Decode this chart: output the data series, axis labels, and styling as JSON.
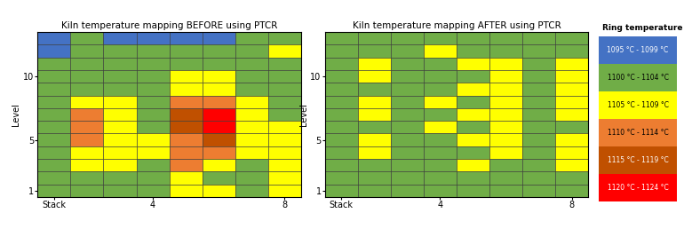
{
  "title_before": "Kiln temperature mapping BEFORE using PTCR",
  "title_after": "Kiln temperature mapping AFTER using PTCR",
  "legend_title": "Ring temperature",
  "legend_entries": [
    "1095 °C - 1099 °C",
    "1100 °C - 1104 °C",
    "1105 °C - 1109 °C",
    "1110 °C - 1114 °C",
    "1115 °C - 1119 °C",
    "1120 °C - 1124 °C"
  ],
  "color_list": [
    "#4472C4",
    "#70AD47",
    "#FFFF00",
    "#ED7D31",
    "#C05000",
    "#FF0000"
  ],
  "n_stacks": 8,
  "n_levels": 13,
  "before_grid": [
    [
      0,
      1,
      0,
      0,
      0,
      0,
      1,
      1
    ],
    [
      0,
      1,
      1,
      1,
      1,
      1,
      1,
      2
    ],
    [
      1,
      1,
      1,
      1,
      1,
      1,
      1,
      1
    ],
    [
      1,
      1,
      1,
      1,
      2,
      2,
      1,
      1
    ],
    [
      1,
      1,
      1,
      1,
      2,
      2,
      1,
      1
    ],
    [
      1,
      2,
      2,
      1,
      3,
      3,
      2,
      1
    ],
    [
      1,
      3,
      2,
      1,
      4,
      5,
      2,
      1
    ],
    [
      1,
      3,
      2,
      1,
      4,
      5,
      2,
      2
    ],
    [
      1,
      3,
      2,
      2,
      3,
      4,
      2,
      2
    ],
    [
      1,
      2,
      2,
      2,
      3,
      3,
      2,
      2
    ],
    [
      1,
      2,
      2,
      1,
      3,
      2,
      1,
      2
    ],
    [
      1,
      1,
      1,
      1,
      2,
      1,
      1,
      2
    ],
    [
      1,
      1,
      1,
      1,
      2,
      2,
      1,
      2
    ]
  ],
  "after_grid": [
    [
      1,
      1,
      1,
      1,
      1,
      1,
      1,
      1
    ],
    [
      1,
      1,
      1,
      2,
      1,
      1,
      1,
      1
    ],
    [
      1,
      2,
      1,
      1,
      2,
      2,
      1,
      2
    ],
    [
      1,
      2,
      1,
      1,
      1,
      2,
      1,
      2
    ],
    [
      1,
      1,
      1,
      1,
      2,
      2,
      1,
      2
    ],
    [
      1,
      2,
      1,
      2,
      1,
      2,
      1,
      2
    ],
    [
      1,
      2,
      1,
      1,
      2,
      2,
      1,
      2
    ],
    [
      1,
      1,
      1,
      2,
      1,
      2,
      1,
      1
    ],
    [
      1,
      2,
      1,
      1,
      2,
      2,
      1,
      2
    ],
    [
      1,
      2,
      1,
      1,
      1,
      2,
      1,
      2
    ],
    [
      1,
      1,
      1,
      1,
      2,
      1,
      1,
      2
    ],
    [
      1,
      1,
      1,
      1,
      1,
      1,
      1,
      1
    ],
    [
      1,
      1,
      1,
      1,
      1,
      1,
      1,
      1
    ]
  ]
}
